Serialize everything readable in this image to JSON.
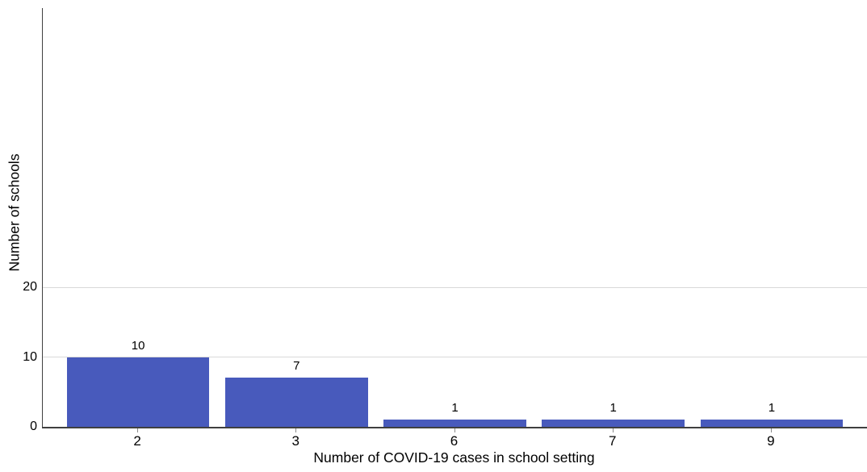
{
  "chart_data": {
    "type": "bar",
    "title": "",
    "categories": [
      "2",
      "3",
      "6",
      "7",
      "9"
    ],
    "values": [
      10,
      7,
      1,
      1,
      1
    ],
    "bar_labels": [
      "10",
      "7",
      "1",
      "1",
      "1"
    ],
    "xlabel": "Number of COVID-19 cases in school setting",
    "ylabel": "Number of schools",
    "ylim": [
      0,
      60
    ],
    "ytick_labels": [
      "0",
      "10",
      "20"
    ],
    "ytick_values": [
      0,
      10,
      20
    ],
    "gridline_values": [
      10,
      20
    ],
    "grid": "horizontal-only",
    "legend": "none",
    "colors": {
      "bar": "#485ABC",
      "gridline": "#D9D9D9",
      "axis": "#404040",
      "tick": "#8A8A8A",
      "text": "#000000",
      "background": "#FFFFFF"
    }
  }
}
